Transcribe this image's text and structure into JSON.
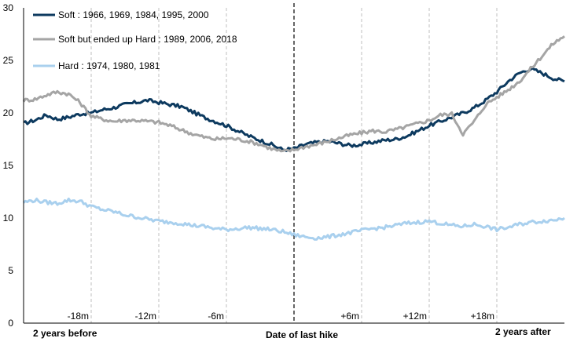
{
  "chart_data": {
    "type": "line",
    "title": "",
    "xlabel": "",
    "ylabel": "",
    "ylim": [
      0,
      30
    ],
    "yticks": [
      0,
      5,
      10,
      15,
      20,
      25,
      30
    ],
    "x_range_months": [
      -24,
      24
    ],
    "x_bottom_labels": {
      "start": "2 years before",
      "center": "Date of last hike",
      "end": "2 years after"
    },
    "x_marker_labels": [
      {
        "month": -18,
        "label": "-18m"
      },
      {
        "month": -12,
        "label": "-12m"
      },
      {
        "month": -6,
        "label": "-6m"
      },
      {
        "month": 6,
        "label": "+6m"
      },
      {
        "month": 12,
        "label": "+12m"
      },
      {
        "month": 18,
        "label": "+18m"
      }
    ],
    "center_month": 0,
    "legend_placement": "top-left",
    "grid": false,
    "series": [
      {
        "name": "Soft : 1966, 1969, 1984, 1995, 2000",
        "color": "#0d3a5f",
        "months": [
          -24,
          -23,
          -22,
          -21,
          -20,
          -19,
          -18,
          -17,
          -16,
          -15,
          -14,
          -13,
          -12,
          -11,
          -10,
          -9,
          -8,
          -7,
          -6,
          -5,
          -4,
          -3,
          -2,
          -1,
          0,
          1,
          2,
          3,
          4,
          5,
          6,
          7,
          8,
          9,
          10,
          11,
          12,
          13,
          14,
          15,
          16,
          17,
          18,
          19,
          20,
          21,
          22,
          23,
          24
        ],
        "values": [
          19.0,
          19.3,
          19.8,
          19.4,
          19.6,
          19.9,
          20.0,
          20.3,
          20.5,
          20.8,
          21.0,
          21.2,
          21.0,
          20.8,
          20.6,
          20.1,
          19.6,
          19.2,
          18.8,
          18.3,
          17.8,
          17.4,
          17.0,
          16.5,
          16.6,
          17.0,
          17.2,
          17.3,
          17.1,
          16.9,
          17.0,
          17.2,
          17.4,
          17.5,
          17.8,
          18.3,
          18.8,
          19.2,
          19.6,
          20.0,
          20.5,
          21.2,
          22.0,
          23.0,
          23.8,
          24.2,
          23.8,
          23.3,
          23.0
        ]
      },
      {
        "name": "Soft but ended up Hard : 1989, 2006, 2018",
        "color": "#a5a5a5",
        "months": [
          -24,
          -23,
          -22,
          -21,
          -20,
          -19,
          -18,
          -17,
          -16,
          -15,
          -14,
          -13,
          -12,
          -11,
          -10,
          -9,
          -8,
          -7,
          -6,
          -5,
          -4,
          -3,
          -2,
          -1,
          0,
          1,
          2,
          3,
          4,
          5,
          6,
          7,
          8,
          9,
          10,
          11,
          12,
          13,
          14,
          15,
          16,
          17,
          18,
          19,
          20,
          21,
          22,
          23,
          24
        ],
        "values": [
          21.2,
          21.3,
          21.7,
          22.0,
          21.8,
          21.0,
          19.7,
          19.4,
          19.2,
          19.3,
          19.3,
          19.2,
          19.1,
          18.8,
          18.4,
          18.0,
          17.7,
          17.5,
          17.6,
          17.5,
          17.3,
          17.0,
          16.6,
          16.3,
          16.5,
          16.8,
          17.0,
          17.3,
          17.6,
          17.9,
          18.1,
          18.3,
          18.2,
          18.4,
          18.7,
          19.0,
          19.3,
          19.8,
          19.9,
          18.0,
          19.2,
          20.8,
          21.5,
          22.2,
          23.0,
          24.2,
          25.4,
          26.6,
          27.3
        ]
      },
      {
        "name": "Hard : 1974, 1980, 1981",
        "color": "#a9d0ee",
        "months": [
          -24,
          -23,
          -22,
          -21,
          -20,
          -19,
          -18,
          -17,
          -16,
          -15,
          -14,
          -13,
          -12,
          -11,
          -10,
          -9,
          -8,
          -7,
          -6,
          -5,
          -4,
          -3,
          -2,
          -1,
          0,
          1,
          2,
          3,
          4,
          5,
          6,
          7,
          8,
          9,
          10,
          11,
          12,
          13,
          14,
          15,
          16,
          17,
          18,
          19,
          20,
          21,
          22,
          23,
          24
        ],
        "values": [
          11.5,
          11.7,
          11.5,
          11.4,
          11.7,
          11.6,
          11.1,
          10.8,
          10.6,
          10.3,
          10.1,
          9.9,
          9.7,
          9.6,
          9.5,
          9.3,
          9.2,
          9.0,
          8.9,
          9.0,
          9.1,
          9.0,
          8.9,
          8.7,
          8.4,
          8.2,
          8.1,
          8.2,
          8.4,
          8.6,
          8.8,
          9.0,
          9.1,
          9.3,
          9.5,
          9.6,
          9.7,
          9.5,
          9.3,
          9.2,
          9.4,
          9.2,
          8.9,
          9.1,
          9.4,
          9.6,
          9.7,
          9.8,
          10.0
        ]
      }
    ]
  }
}
